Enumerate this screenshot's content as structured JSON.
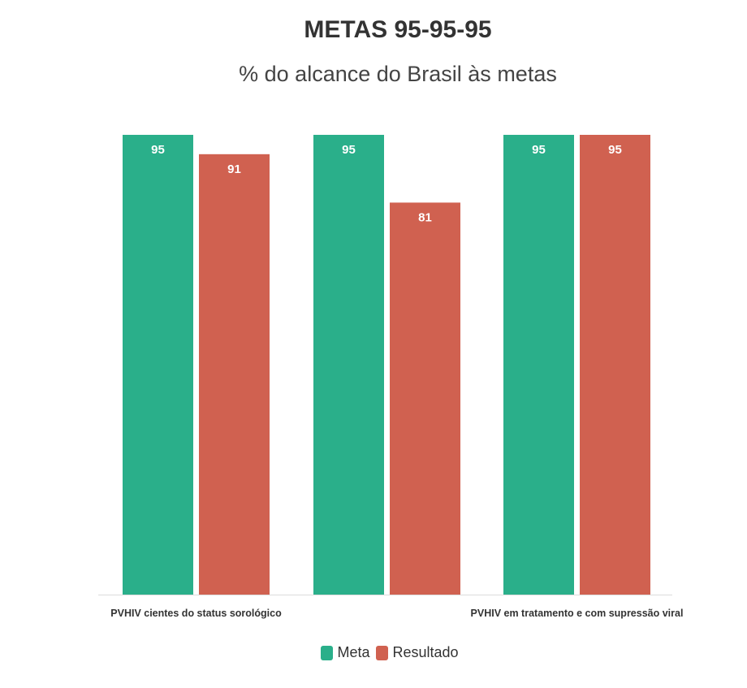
{
  "chart_data": {
    "type": "bar",
    "title": "METAS 95-95-95",
    "subtitle": "% do alcance do Brasil às metas",
    "categories": [
      "PVHIV cientes do status sorológico",
      "",
      "PVHIV em tratamento e com supressão viral"
    ],
    "series": [
      {
        "name": "Meta",
        "color": "#2aaf8a",
        "values": [
          95,
          95,
          95
        ]
      },
      {
        "name": "Resultado",
        "color": "#d06150",
        "values": [
          91,
          81,
          95
        ]
      }
    ],
    "ylim": [
      0,
      95
    ],
    "xlabel": "",
    "ylabel": "",
    "grid": false,
    "legend_position": "bottom-center"
  }
}
